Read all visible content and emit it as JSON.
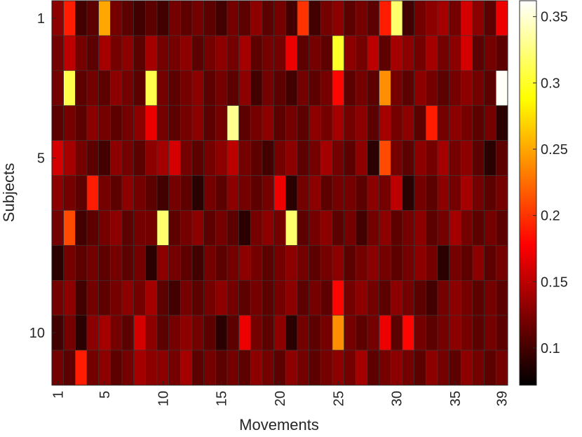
{
  "chart_data": {
    "type": "heatmap",
    "colormap": "hot",
    "xlabel": "Movements",
    "ylabel": "Subjects",
    "x_ticks": [
      1,
      5,
      10,
      15,
      20,
      25,
      30,
      35,
      39
    ],
    "x_tick_labels": [
      "1",
      "5",
      "10",
      "15",
      "20",
      "25",
      "30",
      "35",
      "39"
    ],
    "y_ticks": [
      1,
      5,
      10
    ],
    "y_tick_labels": [
      "1",
      "5",
      "10"
    ],
    "rows": 11,
    "cols": 39,
    "colorbar": {
      "range": [
        0.072,
        0.362
      ],
      "ticks": [
        0.1,
        0.15,
        0.2,
        0.25,
        0.3,
        0.35
      ],
      "tick_labels": [
        "0.1",
        "0.15",
        "0.2",
        "0.25",
        "0.3",
        "0.35"
      ]
    },
    "values": [
      [
        0.13,
        0.19,
        0.1,
        0.11,
        0.25,
        0.12,
        0.11,
        0.1,
        0.11,
        0.1,
        0.12,
        0.11,
        0.12,
        0.11,
        0.1,
        0.12,
        0.11,
        0.13,
        0.11,
        0.12,
        0.1,
        0.2,
        0.1,
        0.12,
        0.13,
        0.11,
        0.12,
        0.11,
        0.19,
        0.32,
        0.1,
        0.12,
        0.13,
        0.14,
        0.12,
        0.16,
        0.13,
        0.11,
        0.17
      ],
      [
        0.12,
        0.15,
        0.12,
        0.11,
        0.14,
        0.12,
        0.13,
        0.11,
        0.14,
        0.12,
        0.12,
        0.13,
        0.11,
        0.12,
        0.13,
        0.12,
        0.14,
        0.11,
        0.12,
        0.12,
        0.17,
        0.11,
        0.12,
        0.11,
        0.3,
        0.13,
        0.12,
        0.15,
        0.11,
        0.14,
        0.13,
        0.12,
        0.14,
        0.12,
        0.13,
        0.16,
        0.11,
        0.12,
        0.11
      ],
      [
        0.12,
        0.31,
        0.11,
        0.12,
        0.11,
        0.13,
        0.12,
        0.11,
        0.31,
        0.12,
        0.11,
        0.12,
        0.13,
        0.11,
        0.12,
        0.11,
        0.13,
        0.1,
        0.12,
        0.11,
        0.1,
        0.12,
        0.11,
        0.12,
        0.18,
        0.11,
        0.12,
        0.11,
        0.24,
        0.12,
        0.11,
        0.13,
        0.12,
        0.11,
        0.12,
        0.13,
        0.12,
        0.11,
        0.36
      ],
      [
        0.11,
        0.12,
        0.11,
        0.13,
        0.12,
        0.11,
        0.12,
        0.13,
        0.17,
        0.12,
        0.11,
        0.12,
        0.13,
        0.11,
        0.12,
        0.33,
        0.11,
        0.12,
        0.13,
        0.11,
        0.12,
        0.11,
        0.13,
        0.12,
        0.14,
        0.12,
        0.13,
        0.11,
        0.14,
        0.12,
        0.13,
        0.11,
        0.19,
        0.12,
        0.13,
        0.12,
        0.11,
        0.12,
        0.09
      ],
      [
        0.16,
        0.14,
        0.12,
        0.11,
        0.1,
        0.13,
        0.12,
        0.11,
        0.13,
        0.14,
        0.16,
        0.12,
        0.11,
        0.12,
        0.13,
        0.15,
        0.12,
        0.11,
        0.1,
        0.12,
        0.13,
        0.11,
        0.12,
        0.14,
        0.12,
        0.11,
        0.13,
        0.09,
        0.21,
        0.12,
        0.11,
        0.13,
        0.12,
        0.14,
        0.12,
        0.13,
        0.11,
        0.09,
        0.11
      ],
      [
        0.13,
        0.12,
        0.11,
        0.19,
        0.12,
        0.11,
        0.13,
        0.12,
        0.11,
        0.1,
        0.12,
        0.11,
        0.09,
        0.12,
        0.11,
        0.13,
        0.12,
        0.11,
        0.12,
        0.17,
        0.09,
        0.12,
        0.13,
        0.11,
        0.12,
        0.12,
        0.11,
        0.13,
        0.12,
        0.15,
        0.09,
        0.12,
        0.11,
        0.13,
        0.12,
        0.14,
        0.12,
        0.11,
        0.12
      ],
      [
        0.12,
        0.21,
        0.1,
        0.11,
        0.12,
        0.13,
        0.11,
        0.12,
        0.12,
        0.32,
        0.11,
        0.12,
        0.13,
        0.11,
        0.12,
        0.11,
        0.09,
        0.12,
        0.13,
        0.12,
        0.32,
        0.11,
        0.12,
        0.13,
        0.11,
        0.12,
        0.1,
        0.12,
        0.13,
        0.11,
        0.12,
        0.13,
        0.11,
        0.12,
        0.14,
        0.12,
        0.11,
        0.12,
        0.11
      ],
      [
        0.09,
        0.12,
        0.11,
        0.12,
        0.11,
        0.12,
        0.11,
        0.12,
        0.09,
        0.13,
        0.12,
        0.11,
        0.1,
        0.12,
        0.11,
        0.12,
        0.13,
        0.12,
        0.11,
        0.12,
        0.13,
        0.12,
        0.11,
        0.12,
        0.13,
        0.11,
        0.12,
        0.13,
        0.12,
        0.11,
        0.12,
        0.13,
        0.12,
        0.09,
        0.12,
        0.11,
        0.13,
        0.11,
        0.12
      ],
      [
        0.12,
        0.13,
        0.1,
        0.12,
        0.11,
        0.12,
        0.13,
        0.12,
        0.14,
        0.11,
        0.1,
        0.12,
        0.11,
        0.12,
        0.13,
        0.12,
        0.11,
        0.12,
        0.11,
        0.12,
        0.13,
        0.11,
        0.12,
        0.11,
        0.18,
        0.12,
        0.13,
        0.12,
        0.11,
        0.13,
        0.12,
        0.11,
        0.1,
        0.12,
        0.13,
        0.12,
        0.11,
        0.12,
        0.11
      ],
      [
        0.1,
        0.12,
        0.09,
        0.13,
        0.14,
        0.12,
        0.11,
        0.16,
        0.13,
        0.11,
        0.12,
        0.13,
        0.12,
        0.11,
        0.09,
        0.11,
        0.17,
        0.12,
        0.11,
        0.13,
        0.09,
        0.12,
        0.11,
        0.12,
        0.24,
        0.12,
        0.11,
        0.12,
        0.17,
        0.11,
        0.18,
        0.12,
        0.11,
        0.12,
        0.13,
        0.12,
        0.11,
        0.12,
        0.11
      ],
      [
        0.12,
        0.11,
        0.19,
        0.12,
        0.13,
        0.11,
        0.12,
        0.14,
        0.13,
        0.13,
        0.12,
        0.14,
        0.11,
        0.12,
        0.11,
        0.12,
        0.11,
        0.13,
        0.12,
        0.11,
        0.13,
        0.12,
        0.11,
        0.12,
        0.13,
        0.12,
        0.14,
        0.11,
        0.12,
        0.13,
        0.12,
        0.11,
        0.13,
        0.12,
        0.11,
        0.13,
        0.12,
        0.11,
        0.12
      ]
    ]
  }
}
